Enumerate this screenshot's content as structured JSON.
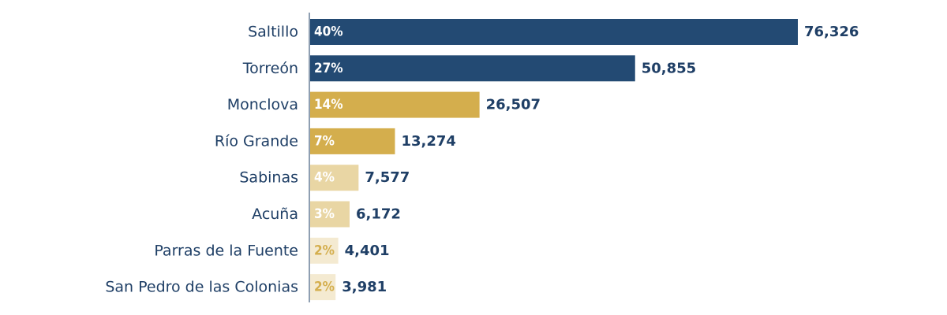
{
  "chart_data": {
    "type": "bar",
    "orientation": "horizontal",
    "categories": [
      "Saltillo",
      "Torreón",
      "Monclova",
      "Río Grande",
      "Sabinas",
      "Acuña",
      "Parras de la Fuente",
      "San Pedro de las Colonias"
    ],
    "values": [
      76326,
      50855,
      26507,
      13274,
      7577,
      6172,
      4401,
      3981
    ],
    "value_labels": [
      "76,326",
      "50,855",
      "26,507",
      "13,274",
      "7,577",
      "6,172",
      "4,401",
      "3,981"
    ],
    "percent_labels": [
      "40%",
      "27%",
      "14%",
      "7%",
      "4%",
      "3%",
      "2%",
      "2%"
    ],
    "bar_colors": [
      "#234a73",
      "#234a73",
      "#d4ae4d",
      "#d4ae4d",
      "#e9d6a4",
      "#e9d6a4",
      "#f4ead1",
      "#f4ead1"
    ],
    "percent_label_colors": [
      "#ffffff",
      "#ffffff",
      "#ffffff",
      "#ffffff",
      "#ffffff",
      "#ffffff",
      "#d4ae4d",
      "#d4ae4d"
    ],
    "xlim": [
      0,
      76326
    ],
    "grid": false,
    "legend": "none",
    "title": "",
    "xlabel": "",
    "ylabel": ""
  }
}
